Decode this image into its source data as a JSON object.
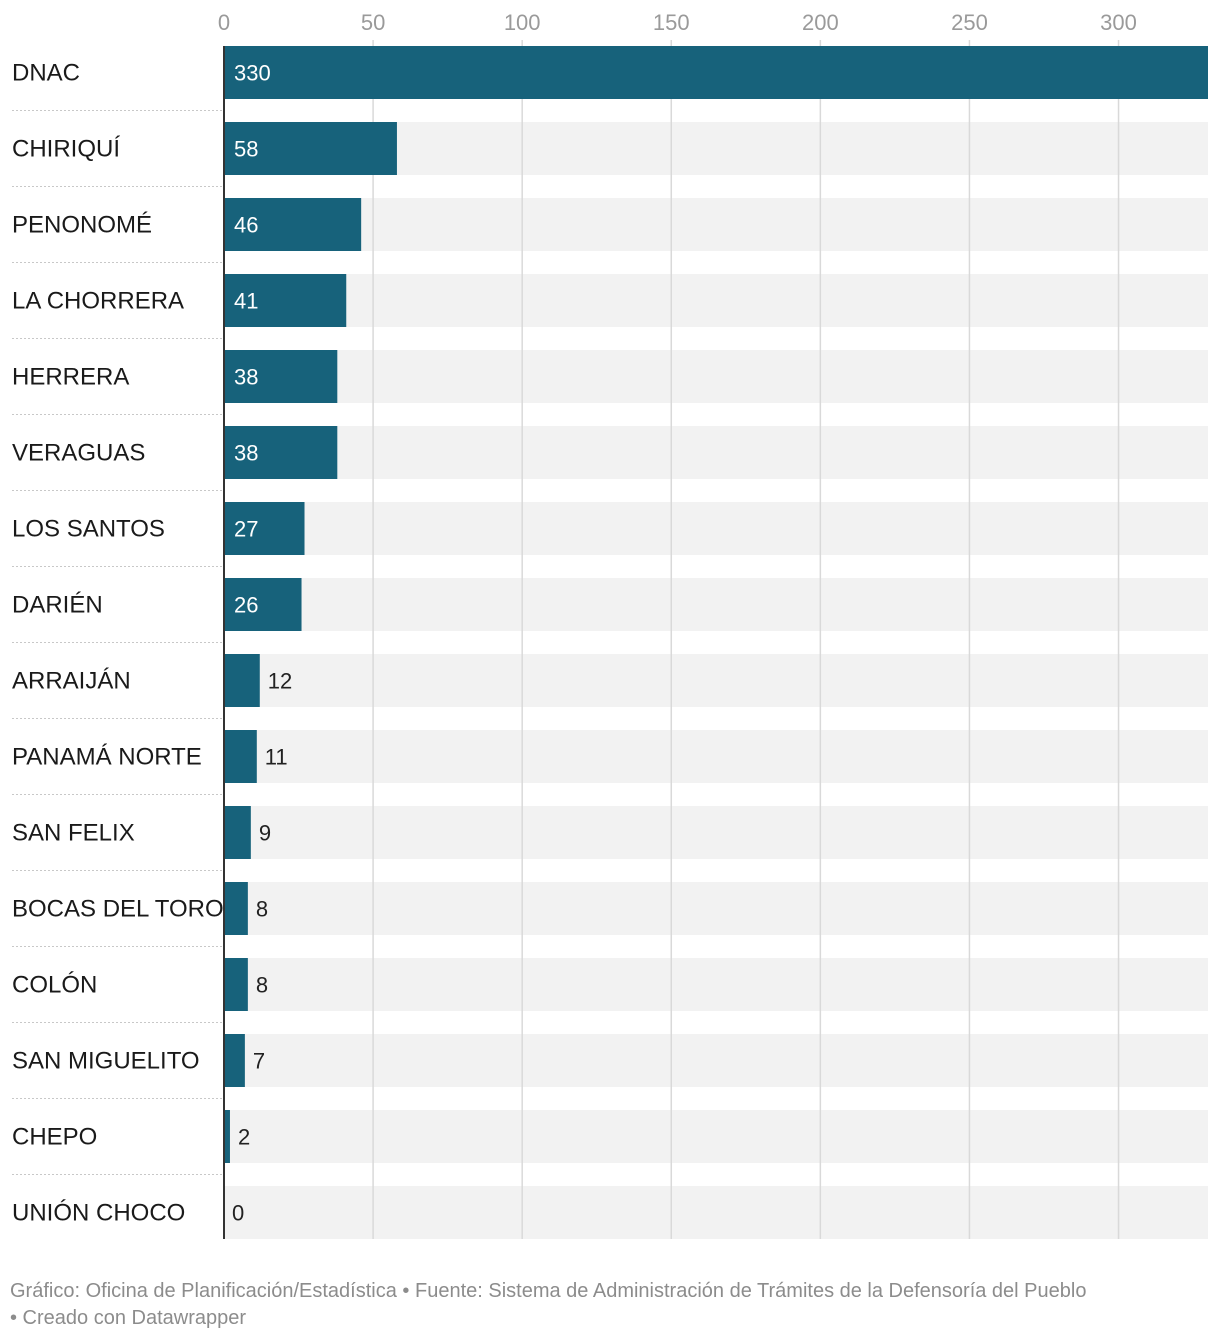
{
  "chart_data": {
    "type": "bar",
    "orientation": "horizontal",
    "categories": [
      "DNAC",
      "CHIRIQUÍ",
      "PENONOMÉ",
      "LA CHORRERA",
      "HERRERA",
      "VERAGUAS",
      "LOS SANTOS",
      "DARIÉN",
      "ARRAIJÁN",
      "PANAMÁ NORTE",
      "SAN FELIX",
      "BOCAS DEL TORO",
      "COLÓN",
      "SAN MIGUELITO",
      "CHEPO",
      "UNIÓN CHOCO"
    ],
    "values": [
      330,
      58,
      46,
      41,
      38,
      38,
      27,
      26,
      12,
      11,
      9,
      8,
      8,
      7,
      2,
      0
    ],
    "xticks": [
      0,
      50,
      100,
      150,
      200,
      250,
      300
    ],
    "xlim": [
      0,
      330
    ],
    "grid": true,
    "bar_color": "#17627b",
    "track_color": "#f2f2f2"
  },
  "footer": {
    "grafico": "Gráfico: Oficina de Planificación/Estadística",
    "fuente": "• Fuente: Sistema de Administración de Trámites de la Defensoría del Pueblo",
    "creado": "• Creado con Datawrapper"
  }
}
